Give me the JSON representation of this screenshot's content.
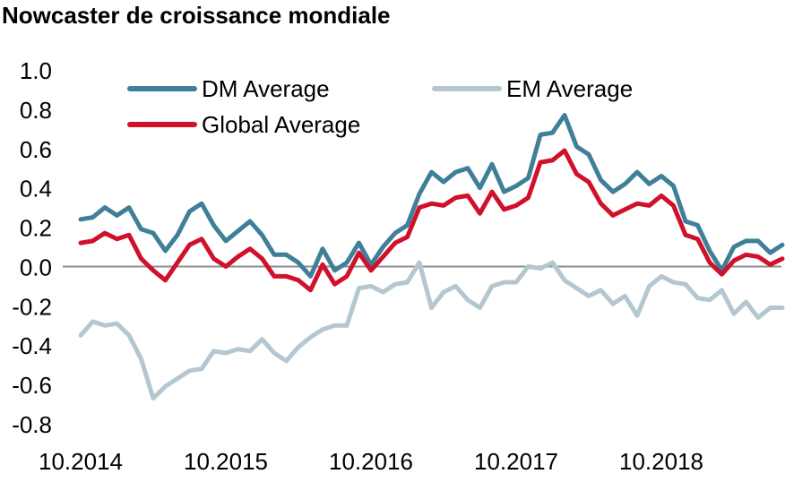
{
  "chart_data": {
    "type": "line",
    "title": "Nowcaster de croissance mondiale",
    "xlabel": "",
    "ylabel": "",
    "ylim": [
      -0.8,
      1.0
    ],
    "y_ticks": [
      1.0,
      0.8,
      0.6,
      0.4,
      0.2,
      0.0,
      -0.2,
      -0.4,
      -0.6,
      -0.8
    ],
    "y_tick_labels": [
      "1.0",
      "0.8",
      "0.6",
      "0.4",
      "0.2",
      "0.0",
      "-0.2",
      "-0.4",
      "-0.6",
      "-0.8"
    ],
    "x_start": "2014-10",
    "x_ticks": [
      "2014-10",
      "2015-10",
      "2016-10",
      "2017-10",
      "2018-10"
    ],
    "x_tick_labels": [
      "10.2014",
      "10.2015",
      "10.2016",
      "10.2017",
      "10.2018"
    ],
    "grid": false,
    "zero_line": true,
    "legend_position": "top",
    "series": [
      {
        "name": "DM Average",
        "color": "#3f7f99",
        "values": [
          0.24,
          0.25,
          0.3,
          0.26,
          0.3,
          0.19,
          0.17,
          0.08,
          0.16,
          0.28,
          0.32,
          0.21,
          0.13,
          0.18,
          0.23,
          0.16,
          0.06,
          0.06,
          0.02,
          -0.05,
          0.09,
          -0.02,
          0.02,
          0.12,
          0.01,
          0.1,
          0.17,
          0.21,
          0.37,
          0.48,
          0.43,
          0.48,
          0.5,
          0.4,
          0.52,
          0.38,
          0.41,
          0.45,
          0.67,
          0.68,
          0.77,
          0.61,
          0.57,
          0.44,
          0.38,
          0.42,
          0.48,
          0.42,
          0.46,
          0.41,
          0.23,
          0.21,
          0.08,
          -0.02,
          0.1,
          0.13,
          0.13,
          0.07,
          0.11
        ]
      },
      {
        "name": "EM Average",
        "color": "#b4c7d1",
        "values": [
          -0.35,
          -0.28,
          -0.3,
          -0.29,
          -0.35,
          -0.47,
          -0.67,
          -0.61,
          -0.57,
          -0.53,
          -0.52,
          -0.43,
          -0.44,
          -0.42,
          -0.43,
          -0.37,
          -0.44,
          -0.48,
          -0.41,
          -0.36,
          -0.32,
          -0.3,
          -0.3,
          -0.11,
          -0.1,
          -0.13,
          -0.09,
          -0.08,
          0.02,
          -0.21,
          -0.13,
          -0.1,
          -0.17,
          -0.21,
          -0.1,
          -0.08,
          -0.08,
          0.0,
          -0.01,
          0.02,
          -0.07,
          -0.11,
          -0.15,
          -0.12,
          -0.19,
          -0.15,
          -0.25,
          -0.1,
          -0.05,
          -0.08,
          -0.09,
          -0.16,
          -0.17,
          -0.12,
          -0.24,
          -0.18,
          -0.26,
          -0.21,
          -0.21
        ]
      },
      {
        "name": "Global Average",
        "color": "#d0112b",
        "values": [
          0.12,
          0.13,
          0.17,
          0.14,
          0.16,
          0.04,
          -0.02,
          -0.07,
          0.02,
          0.11,
          0.14,
          0.04,
          0.0,
          0.05,
          0.09,
          0.04,
          -0.05,
          -0.05,
          -0.07,
          -0.12,
          0.01,
          -0.09,
          -0.05,
          0.07,
          -0.02,
          0.05,
          0.12,
          0.15,
          0.3,
          0.32,
          0.31,
          0.35,
          0.36,
          0.27,
          0.38,
          0.29,
          0.31,
          0.35,
          0.53,
          0.54,
          0.59,
          0.47,
          0.43,
          0.32,
          0.26,
          0.29,
          0.32,
          0.31,
          0.36,
          0.31,
          0.16,
          0.14,
          0.02,
          -0.04,
          0.03,
          0.06,
          0.05,
          0.01,
          0.04
        ]
      }
    ]
  }
}
